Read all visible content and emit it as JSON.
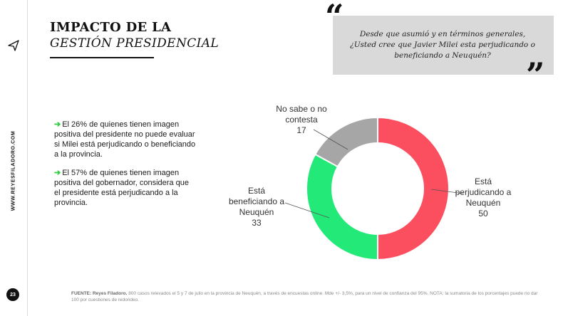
{
  "sidebar": {
    "brand": "WWW.REYESFILADORO.COM",
    "page_number": "23",
    "logo_icon": "paper-plane-icon"
  },
  "header": {
    "title_line1": "IMPACTO DE LA",
    "title_line2": "GESTIÓN PRESIDENCIAL"
  },
  "question": {
    "open_quote": "“",
    "close_quote": "”",
    "text": "Desde que asumió y en términos generales, ¿Usted cree que Javier Milei esta perjudicando o beneficiando a Neuquén?"
  },
  "bullets": [
    {
      "arrow": "➔",
      "text": "El 26% de quienes tienen imagen positiva del presidente no puede evaluar si Milei está perjudicando o beneficiando a la provincia."
    },
    {
      "arrow": "➔",
      "text": "El 57% de quienes tienen imagen positiva del gobernador, considera que el presidente está perjudicando a la provincia."
    }
  ],
  "chart_data": {
    "type": "pie",
    "donut": true,
    "categories": [
      "Está perjudicando a Neuquén",
      "Está beneficiando a Neuquén",
      "No sabe o no contesta"
    ],
    "values": [
      50,
      33,
      17
    ],
    "colors": [
      "#fb4f5f",
      "#22e978",
      "#a6a6a6"
    ],
    "data_labels": [
      {
        "name": "Está perjudicando a Neuquén",
        "value": "50"
      },
      {
        "name": "Está beneficiando a Neuquén",
        "value": "33"
      },
      {
        "name": "No sabe o no contesta",
        "value": "17"
      }
    ]
  },
  "footer": {
    "source_label": "FUENTE: Reyes Filadoro.",
    "source_text": "800 casos relevados el 5 y 7 de julio en la provincia de Neuquén, a través de encuestas online. Mde +/- 3,5%, para un nivel de confianza del 95%. NOTA: la sumatoria de los porcentajes puede no dar 100 por cuestiones de redondeo."
  }
}
